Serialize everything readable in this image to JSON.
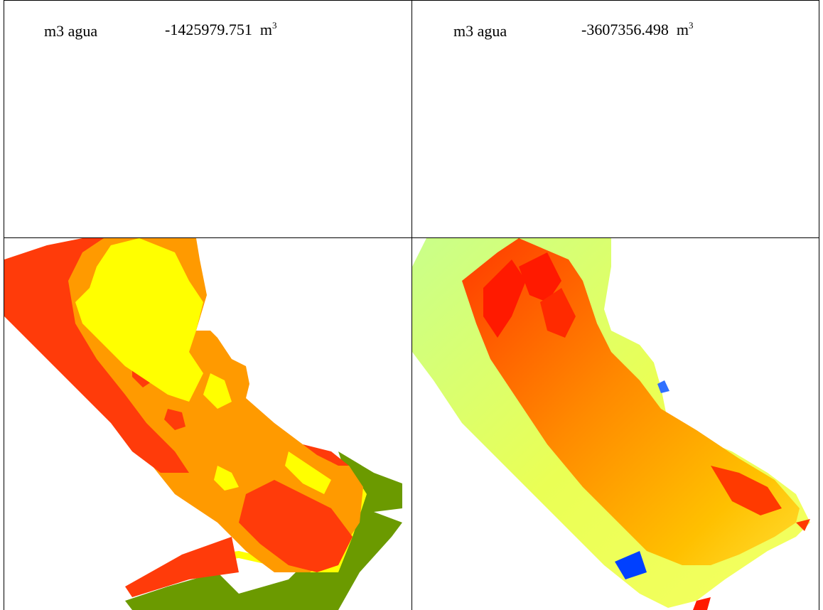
{
  "table": {
    "left_cell": {
      "label": "m3 agua",
      "value": "-1425979.751",
      "unit_base": "m",
      "unit_exp": "3"
    },
    "right_cell": {
      "label": "m3 agua",
      "value": "-3607356.498",
      "unit_base": "m",
      "unit_exp": "3"
    }
  },
  "colors": {
    "left_map_palette": [
      "#ff3b0a",
      "#ff9a00",
      "#ffff00",
      "#6b9a00"
    ],
    "right_map_palette": [
      "#ff1a00",
      "#ff7a00",
      "#ffcc00",
      "#eaff40",
      "#c9ff6a",
      "#0040ff"
    ]
  }
}
